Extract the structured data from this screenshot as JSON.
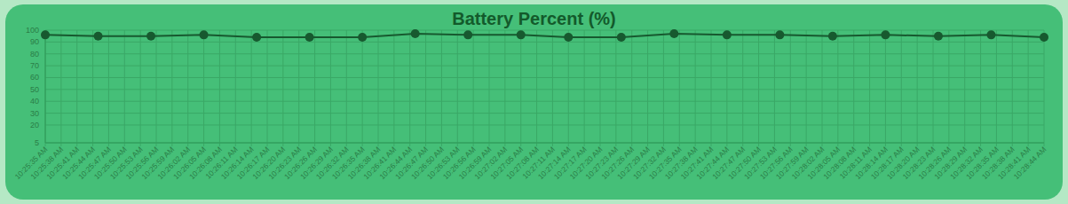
{
  "chart_data": {
    "type": "line",
    "title": "Battery Percent (%)",
    "x": [
      37535,
      37545,
      37555,
      37565,
      37575,
      37585,
      37595,
      37605,
      37615,
      37625,
      37634,
      37644,
      37654,
      37664,
      37674,
      37684,
      37694,
      37704,
      37714,
      37724
    ],
    "values": [
      96,
      95,
      95,
      96,
      94,
      94,
      94,
      97,
      96,
      96,
      94,
      94,
      97,
      96,
      96,
      95,
      96,
      95,
      96,
      94
    ],
    "color": "#17592f",
    "marker": "circle",
    "xlim": [
      37535,
      37724
    ],
    "xticks": [
      {
        "value": 37535,
        "label": "10:25:35 AM"
      },
      {
        "value": 37538,
        "label": "10:25:38 AM"
      },
      {
        "value": 37541,
        "label": "10:25:41 AM"
      },
      {
        "value": 37544,
        "label": "10:25:44 AM"
      },
      {
        "value": 37547,
        "label": "10:25:47 AM"
      },
      {
        "value": 37550,
        "label": "10:25:50 AM"
      },
      {
        "value": 37553,
        "label": "10:25:53 AM"
      },
      {
        "value": 37556,
        "label": "10:25:56 AM"
      },
      {
        "value": 37559,
        "label": "10:25:59 AM"
      },
      {
        "value": 37562,
        "label": "10:26:02 AM"
      },
      {
        "value": 37565,
        "label": "10:26:05 AM"
      },
      {
        "value": 37568,
        "label": "10:26:08 AM"
      },
      {
        "value": 37571,
        "label": "10:26:11 AM"
      },
      {
        "value": 37574,
        "label": "10:26:14 AM"
      },
      {
        "value": 37577,
        "label": "10:26:17 AM"
      },
      {
        "value": 37580,
        "label": "10:26:20 AM"
      },
      {
        "value": 37583,
        "label": "10:26:23 AM"
      },
      {
        "value": 37586,
        "label": "10:26:26 AM"
      },
      {
        "value": 37589,
        "label": "10:26:29 AM"
      },
      {
        "value": 37592,
        "label": "10:26:32 AM"
      },
      {
        "value": 37595,
        "label": "10:26:35 AM"
      },
      {
        "value": 37598,
        "label": "10:26:38 AM"
      },
      {
        "value": 37601,
        "label": "10:26:41 AM"
      },
      {
        "value": 37604,
        "label": "10:26:44 AM"
      },
      {
        "value": 37607,
        "label": "10:26:47 AM"
      },
      {
        "value": 37610,
        "label": "10:26:50 AM"
      },
      {
        "value": 37613,
        "label": "10:26:53 AM"
      },
      {
        "value": 37616,
        "label": "10:26:56 AM"
      },
      {
        "value": 37619,
        "label": "10:26:59 AM"
      },
      {
        "value": 37622,
        "label": "10:27:02 AM"
      },
      {
        "value": 37625,
        "label": "10:27:05 AM"
      },
      {
        "value": 37628,
        "label": "10:27:08 AM"
      },
      {
        "value": 37631,
        "label": "10:27:11 AM"
      },
      {
        "value": 37634,
        "label": "10:27:14 AM"
      },
      {
        "value": 37637,
        "label": "10:27:17 AM"
      },
      {
        "value": 37640,
        "label": "10:27:20 AM"
      },
      {
        "value": 37643,
        "label": "10:27:23 AM"
      },
      {
        "value": 37646,
        "label": "10:27:26 AM"
      },
      {
        "value": 37649,
        "label": "10:27:29 AM"
      },
      {
        "value": 37652,
        "label": "10:27:32 AM"
      },
      {
        "value": 37655,
        "label": "10:27:35 AM"
      },
      {
        "value": 37658,
        "label": "10:27:38 AM"
      },
      {
        "value": 37661,
        "label": "10:27:41 AM"
      },
      {
        "value": 37664,
        "label": "10:27:44 AM"
      },
      {
        "value": 37667,
        "label": "10:27:47 AM"
      },
      {
        "value": 37670,
        "label": "10:27:50 AM"
      },
      {
        "value": 37673,
        "label": "10:27:53 AM"
      },
      {
        "value": 37676,
        "label": "10:27:56 AM"
      },
      {
        "value": 37679,
        "label": "10:27:59 AM"
      },
      {
        "value": 37682,
        "label": "10:28:02 AM"
      },
      {
        "value": 37685,
        "label": "10:28:05 AM"
      },
      {
        "value": 37688,
        "label": "10:28:08 AM"
      },
      {
        "value": 37691,
        "label": "10:28:11 AM"
      },
      {
        "value": 37694,
        "label": "10:28:14 AM"
      },
      {
        "value": 37697,
        "label": "10:28:17 AM"
      },
      {
        "value": 37700,
        "label": "10:28:20 AM"
      },
      {
        "value": 37703,
        "label": "10:28:23 AM"
      },
      {
        "value": 37706,
        "label": "10:28:26 AM"
      },
      {
        "value": 37709,
        "label": "10:28:29 AM"
      },
      {
        "value": 37712,
        "label": "10:28:32 AM"
      },
      {
        "value": 37715,
        "label": "10:28:35 AM"
      },
      {
        "value": 37718,
        "label": "10:28:38 AM"
      },
      {
        "value": 37721,
        "label": "10:28:41 AM"
      },
      {
        "value": 37724,
        "label": "10:28:44 AM"
      }
    ],
    "ylim": [
      5,
      100
    ],
    "yticks": [
      5,
      20,
      30,
      40,
      50,
      60,
      70,
      80,
      90,
      100
    ],
    "grid": true
  }
}
